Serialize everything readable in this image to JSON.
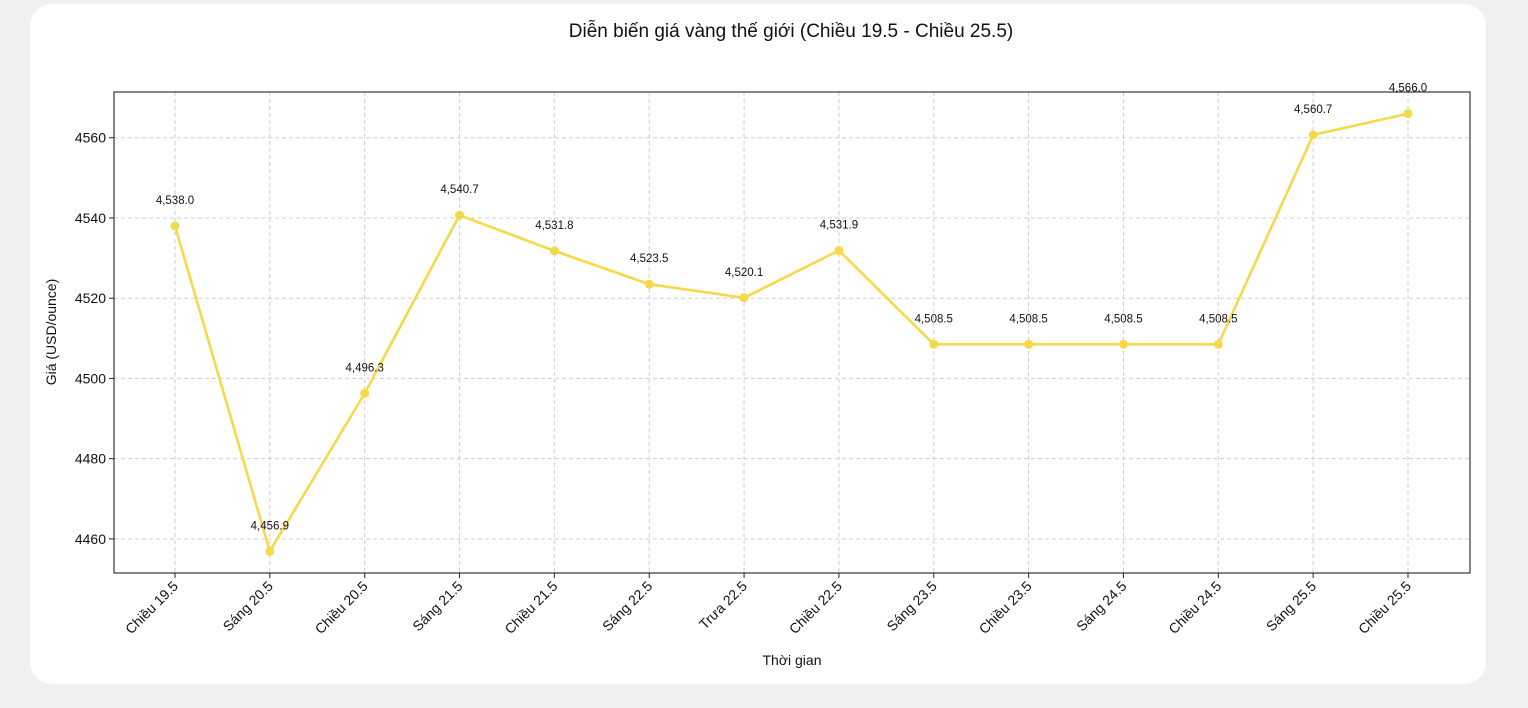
{
  "chart_data": {
    "type": "line",
    "title": "Diễn biến giá vàng thế giới (Chiều 19.5 - Chiều 25.5)",
    "xlabel": "Thời gian",
    "ylabel": "Giá (USD/ounce)",
    "categories": [
      "Chiều 19.5",
      "Sáng 20.5",
      "Chiều 20.5",
      "Sáng 21.5",
      "Chiều 21.5",
      "Sáng 22.5",
      "Trưa 22.5",
      "Chiều 22.5",
      "Sáng 23.5",
      "Chiều 23.5",
      "Sáng 24.5",
      "Chiều 24.5",
      "Sáng 25.5",
      "Chiều 25.5"
    ],
    "values": [
      4538.0,
      4456.9,
      4496.3,
      4540.7,
      4531.8,
      4523.5,
      4520.1,
      4531.9,
      4508.5,
      4508.5,
      4508.5,
      4508.5,
      4560.7,
      4566.0
    ],
    "data_labels": [
      "4,538.0",
      "4,456.9",
      "4,496.3",
      "4,540.7",
      "4,531.8",
      "4,523.5",
      "4,520.1",
      "4,531.9",
      "4,508.5",
      "4,508.5",
      "4,508.5",
      "4,508.5",
      "4,560.7",
      "4,566.0"
    ],
    "yticks": [
      4460,
      4480,
      4500,
      4520,
      4540,
      4560
    ],
    "ylim": [
      4451.5,
      4571.4
    ],
    "grid": true,
    "line_color": "#f5d94a"
  }
}
